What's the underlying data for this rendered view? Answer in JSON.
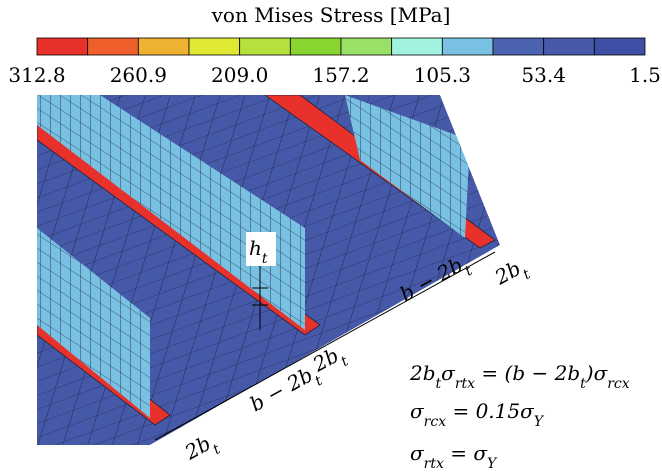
{
  "colorbar": {
    "title": "von Mises Stress [MPa]",
    "colors": [
      "#e8312a",
      "#ef5f2b",
      "#efb132",
      "#dfe833",
      "#b6e03e",
      "#88d52f",
      "#98e066",
      "#a2f2e0",
      "#79c1e3",
      "#4b63b0",
      "#4759a8",
      "#3f4fa6"
    ],
    "ticks": [
      "312.8",
      "260.9",
      "209.0",
      "157.2",
      "105.3",
      "53.4",
      "1.5"
    ]
  },
  "dimensions": [
    [
      {
        "t": "2b",
        "sub": false
      },
      {
        "t": "t",
        "sub": true
      }
    ],
    [
      {
        "t": "b − 2b",
        "sub": false
      },
      {
        "t": "t",
        "sub": true
      }
    ],
    [
      {
        "t": "2b",
        "sub": false
      },
      {
        "t": "t",
        "sub": true
      }
    ],
    [
      {
        "t": "b − 2b",
        "sub": false
      },
      {
        "t": "t",
        "sub": true
      }
    ],
    [
      {
        "t": "2b",
        "sub": false
      },
      {
        "t": "t",
        "sub": true
      }
    ],
    [
      {
        "t": "h",
        "sub": false
      },
      {
        "t": "t",
        "sub": true
      }
    ]
  ],
  "equations": [
    [
      {
        "t": "2b",
        "sub": false
      },
      {
        "t": "t",
        "sub": true
      },
      {
        "t": "σ",
        "sub": false
      },
      {
        "t": "rtx",
        "sub": true
      },
      {
        "t": " = (b − 2b",
        "sub": false
      },
      {
        "t": "t",
        "sub": true
      },
      {
        "t": ")σ",
        "sub": false
      },
      {
        "t": "rcx",
        "sub": true
      }
    ],
    [
      {
        "t": "σ",
        "sub": false
      },
      {
        "t": "rcx",
        "sub": true
      },
      {
        "t": " = 0.15σ",
        "sub": false
      },
      {
        "t": "Y",
        "sub": true
      }
    ],
    [
      {
        "t": "σ",
        "sub": false
      },
      {
        "t": "rtx",
        "sub": true
      },
      {
        "t": " = σ",
        "sub": false
      },
      {
        "t": "Y",
        "sub": true
      }
    ]
  ]
}
